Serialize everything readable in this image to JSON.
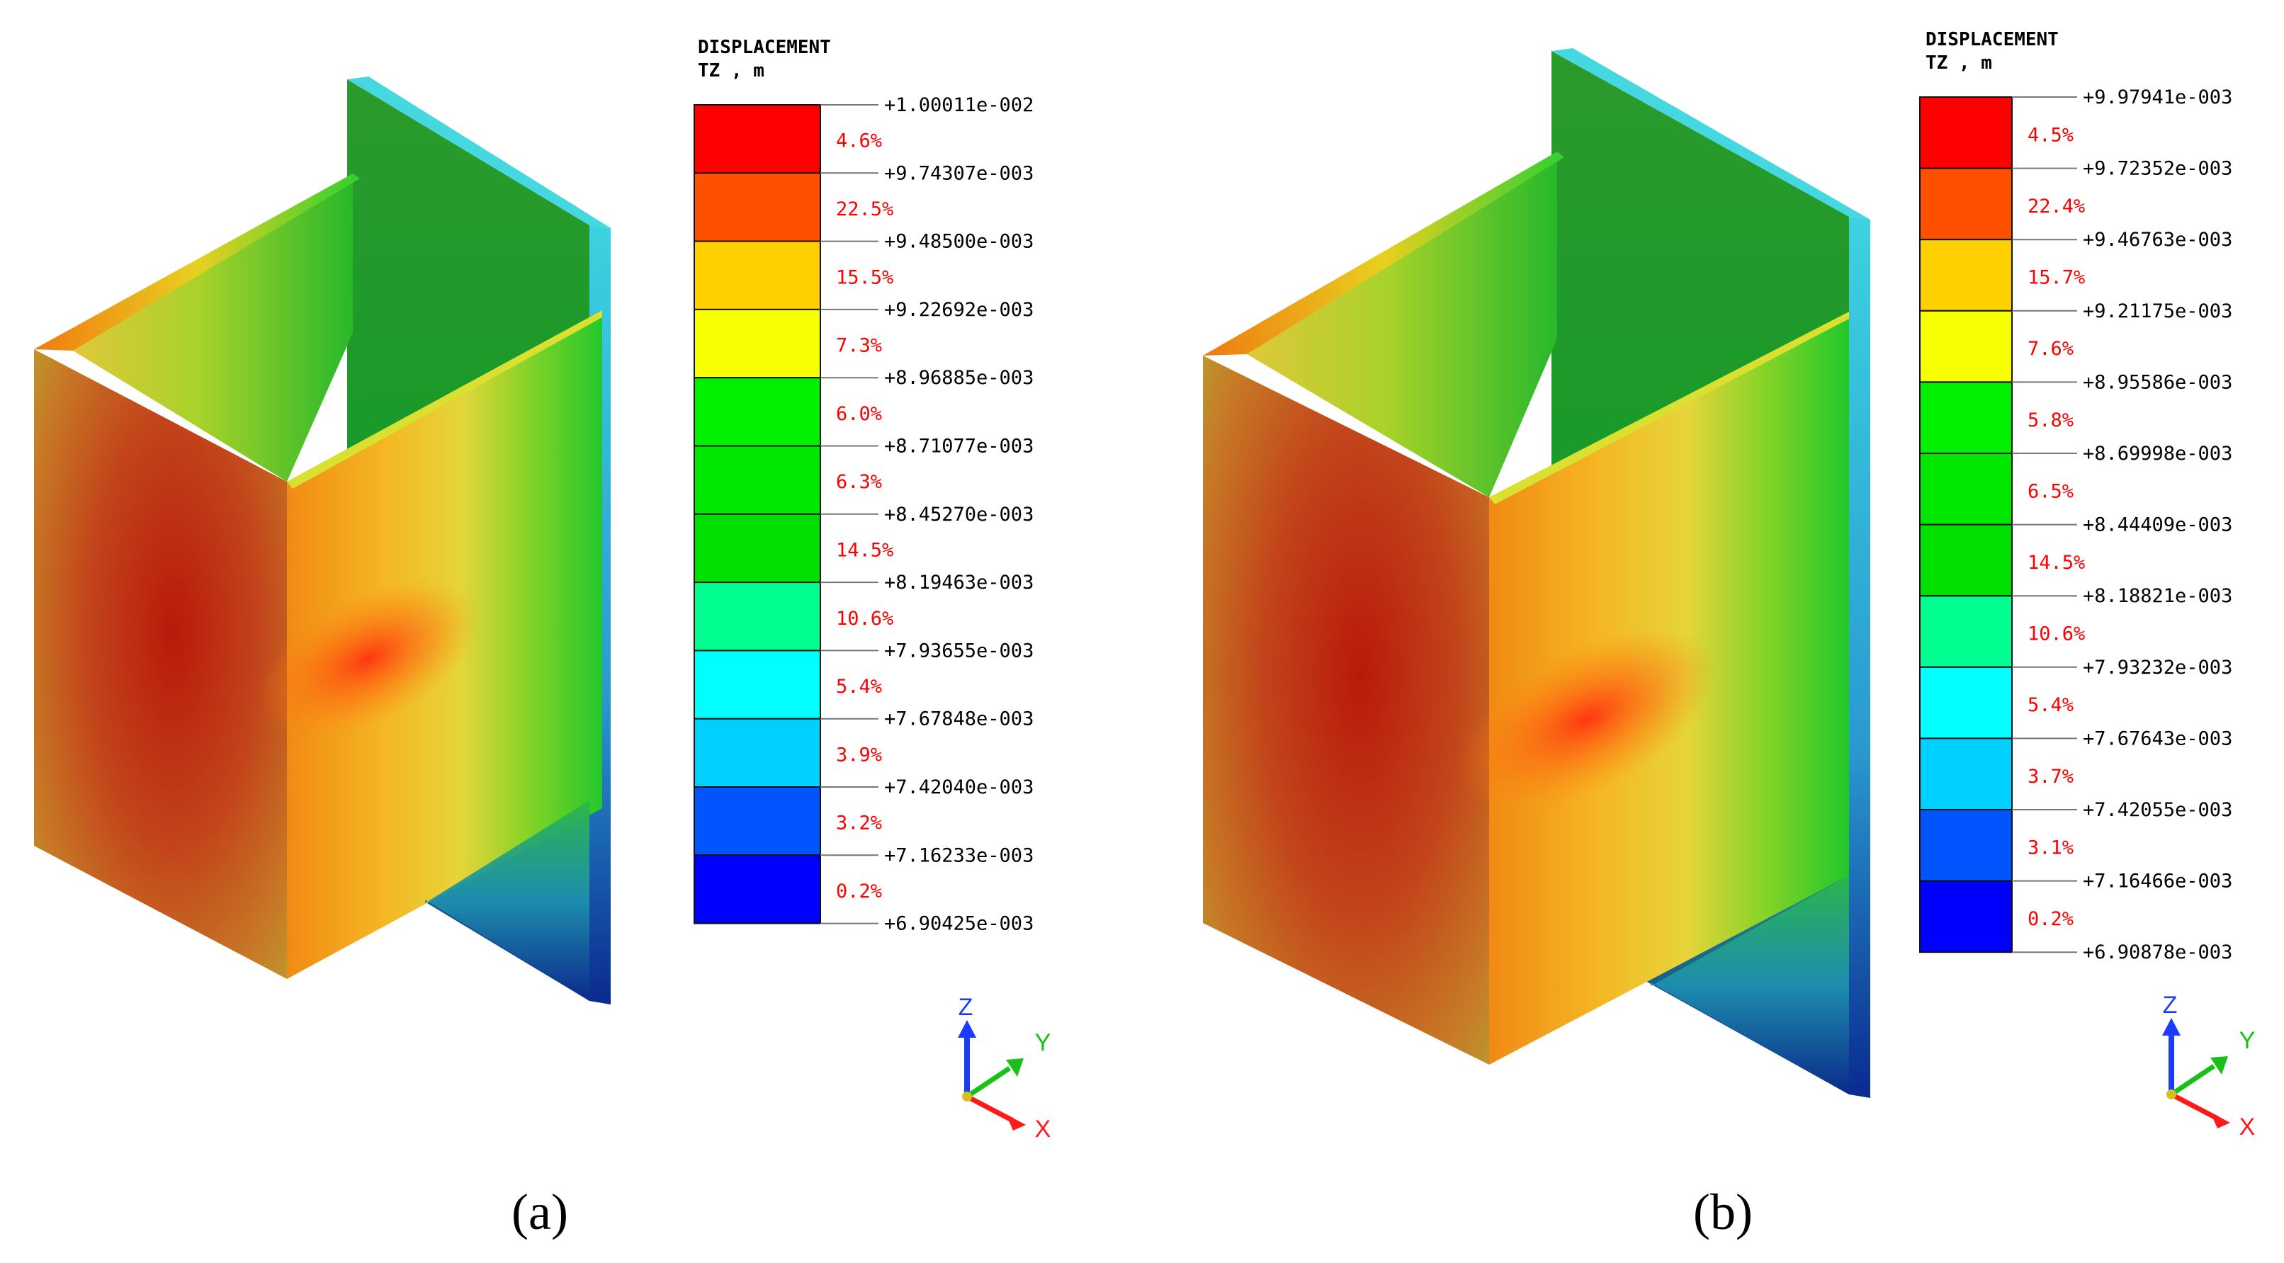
{
  "panels": [
    {
      "id": "a",
      "caption": "(a)",
      "legend": {
        "title_line1": "DISPLACEMENT",
        "title_line2": "TZ , m",
        "values": [
          "+1.00011e-002",
          "+9.74307e-003",
          "+9.48500e-003",
          "+9.22692e-003",
          "+8.96885e-003",
          "+8.71077e-003",
          "+8.45270e-003",
          "+8.19463e-003",
          "+7.93655e-003",
          "+7.67848e-003",
          "+7.42040e-003",
          "+7.16233e-003",
          "+6.90425e-003"
        ],
        "percents": [
          "4.6%",
          "22.5%",
          "15.5%",
          "7.3%",
          "6.0%",
          "6.3%",
          "14.5%",
          "10.6%",
          "5.4%",
          "3.9%",
          "3.2%",
          "0.2%"
        ]
      },
      "axes": {
        "z": "Z",
        "y": "Y",
        "x": "X"
      }
    },
    {
      "id": "b",
      "caption": "(b)",
      "legend": {
        "title_line1": "DISPLACEMENT",
        "title_line2": "TZ , m",
        "values": [
          "+9.97941e-003",
          "+9.72352e-003",
          "+9.46763e-003",
          "+9.21175e-003",
          "+8.95586e-003",
          "+8.69998e-003",
          "+8.44409e-003",
          "+8.18821e-003",
          "+7.93232e-003",
          "+7.67643e-003",
          "+7.42055e-003",
          "+7.16466e-003",
          "+6.90878e-003"
        ],
        "percents": [
          "4.5%",
          "22.4%",
          "15.7%",
          "7.6%",
          "5.8%",
          "6.5%",
          "14.5%",
          "10.6%",
          "5.4%",
          "3.7%",
          "3.1%",
          "0.2%"
        ]
      },
      "axes": {
        "z": "Z",
        "y": "Y",
        "x": "X"
      }
    }
  ],
  "legend_colors": [
    "#ff0000",
    "#ff5000",
    "#ffd000",
    "#f8ff00",
    "#00f000",
    "#00e800",
    "#00e000",
    "#00ff90",
    "#00ffff",
    "#00d0ff",
    "#0055ff",
    "#0000ff"
  ],
  "axis_colors": {
    "z": "#1a3cff",
    "y": "#18c018",
    "x": "#ff1a1a"
  },
  "text_colors": {
    "percent": "#ff0000",
    "value": "#000000"
  }
}
